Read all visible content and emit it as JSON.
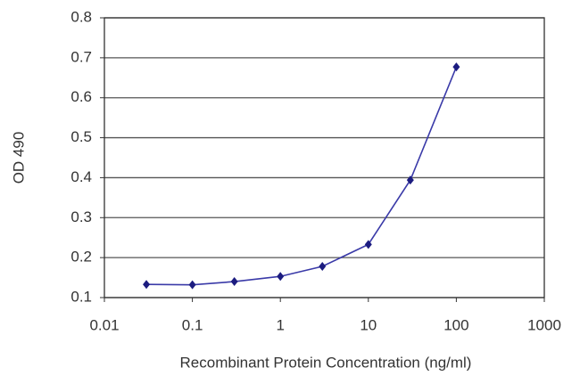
{
  "chart_data": {
    "type": "line",
    "xlabel": "Recombinant Protein Concentration (ng/ml)",
    "ylabel": "OD 490",
    "xscale": "log",
    "x": [
      0.03,
      0.1,
      0.3,
      1,
      3,
      10,
      30,
      100
    ],
    "series": [
      {
        "color": "#3a3aa8",
        "values": [
          0.133,
          0.132,
          0.14,
          0.153,
          0.178,
          0.233,
          0.394,
          0.677
        ]
      }
    ],
    "xlim": [
      0.01,
      1000
    ],
    "xticks": [
      0.01,
      0.1,
      1,
      10,
      100,
      1000
    ],
    "ylim": [
      0.1,
      0.8
    ],
    "yticks": [
      0.1,
      0.2,
      0.3,
      0.4,
      0.5,
      0.6,
      0.7,
      0.8
    ],
    "grid": true
  }
}
